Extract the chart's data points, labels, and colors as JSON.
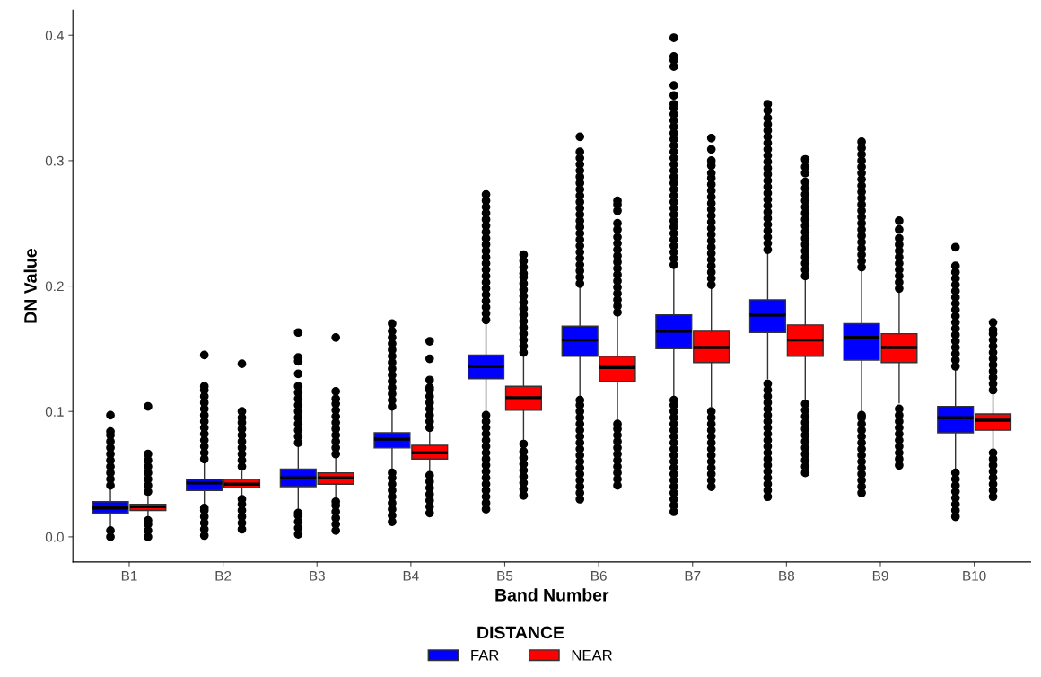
{
  "chart_data": {
    "type": "box",
    "xlabel": "Band Number",
    "ylabel": "DN Value",
    "legend_title": "DISTANCE",
    "legend": "bottom",
    "categories": [
      "B1",
      "B2",
      "B3",
      "B4",
      "B5",
      "B6",
      "B7",
      "B8",
      "B9",
      "B10"
    ],
    "ylim": [
      -0.02,
      0.42
    ],
    "yticks": [
      {
        "value": 0,
        "label": "0.0"
      },
      {
        "value": 0.1,
        "label": "0.1"
      },
      {
        "value": 0.2,
        "label": "0.2"
      },
      {
        "value": 0.3,
        "label": "0.3"
      },
      {
        "value": 0.4,
        "label": "0.4"
      }
    ],
    "series": [
      {
        "name": "FAR",
        "color": "#0000ff",
        "boxes": [
          {
            "low": 0.009,
            "q1": 0.019,
            "median": 0.023,
            "q3": 0.028,
            "high": 0.038,
            "outliers": [
              0.0,
              0.005,
              0.041,
              0.046,
              0.051,
              0.056,
              0.061,
              0.066,
              0.071,
              0.076,
              0.081,
              0.084,
              0.097
            ]
          },
          {
            "low": 0.025,
            "q1": 0.037,
            "median": 0.043,
            "q3": 0.046,
            "high": 0.059,
            "outliers": [
              0.001,
              0.006,
              0.011,
              0.016,
              0.021,
              0.023,
              0.062,
              0.067,
              0.072,
              0.077,
              0.082,
              0.087,
              0.092,
              0.097,
              0.102,
              0.107,
              0.112,
              0.117,
              0.12,
              0.145
            ]
          },
          {
            "low": 0.021,
            "q1": 0.04,
            "median": 0.047,
            "q3": 0.054,
            "high": 0.073,
            "outliers": [
              0.002,
              0.007,
              0.012,
              0.017,
              0.019,
              0.075,
              0.08,
              0.085,
              0.09,
              0.095,
              0.1,
              0.105,
              0.11,
              0.115,
              0.12,
              0.13,
              0.14,
              0.143,
              0.163
            ]
          },
          {
            "low": 0.053,
            "q1": 0.071,
            "median": 0.078,
            "q3": 0.083,
            "high": 0.101,
            "outliers": [
              0.012,
              0.017,
              0.022,
              0.027,
              0.032,
              0.037,
              0.042,
              0.047,
              0.051,
              0.104,
              0.109,
              0.114,
              0.119,
              0.124,
              0.129,
              0.134,
              0.139,
              0.144,
              0.149,
              0.154,
              0.159,
              0.164,
              0.17
            ]
          },
          {
            "low": 0.1,
            "q1": 0.126,
            "median": 0.136,
            "q3": 0.145,
            "high": 0.17,
            "outliers": [
              0.022,
              0.027,
              0.032,
              0.037,
              0.042,
              0.047,
              0.052,
              0.057,
              0.062,
              0.067,
              0.072,
              0.077,
              0.082,
              0.087,
              0.092,
              0.097,
              0.173,
              0.178,
              0.183,
              0.188,
              0.193,
              0.198,
              0.203,
              0.208,
              0.213,
              0.218,
              0.223,
              0.228,
              0.233,
              0.238,
              0.243,
              0.248,
              0.253,
              0.258,
              0.263,
              0.268,
              0.273
            ]
          },
          {
            "low": 0.112,
            "q1": 0.144,
            "median": 0.157,
            "q3": 0.168,
            "high": 0.199,
            "outliers": [
              0.03,
              0.035,
              0.04,
              0.045,
              0.05,
              0.055,
              0.06,
              0.065,
              0.07,
              0.075,
              0.08,
              0.085,
              0.09,
              0.095,
              0.1,
              0.105,
              0.109,
              0.202,
              0.207,
              0.212,
              0.217,
              0.222,
              0.227,
              0.232,
              0.237,
              0.242,
              0.247,
              0.252,
              0.257,
              0.262,
              0.267,
              0.272,
              0.277,
              0.282,
              0.287,
              0.292,
              0.297,
              0.302,
              0.307,
              0.319
            ]
          },
          {
            "low": 0.112,
            "q1": 0.15,
            "median": 0.164,
            "q3": 0.177,
            "high": 0.214,
            "outliers": [
              0.02,
              0.025,
              0.03,
              0.035,
              0.04,
              0.045,
              0.05,
              0.055,
              0.06,
              0.065,
              0.07,
              0.075,
              0.08,
              0.085,
              0.09,
              0.095,
              0.1,
              0.105,
              0.109,
              0.217,
              0.222,
              0.227,
              0.232,
              0.237,
              0.242,
              0.247,
              0.252,
              0.257,
              0.262,
              0.267,
              0.272,
              0.277,
              0.282,
              0.287,
              0.292,
              0.297,
              0.302,
              0.307,
              0.312,
              0.317,
              0.322,
              0.327,
              0.332,
              0.337,
              0.342,
              0.345,
              0.352,
              0.36,
              0.375,
              0.38,
              0.383,
              0.398
            ]
          },
          {
            "low": 0.126,
            "q1": 0.163,
            "median": 0.177,
            "q3": 0.189,
            "high": 0.226,
            "outliers": [
              0.032,
              0.037,
              0.042,
              0.047,
              0.052,
              0.057,
              0.062,
              0.067,
              0.072,
              0.077,
              0.082,
              0.087,
              0.092,
              0.097,
              0.102,
              0.107,
              0.112,
              0.117,
              0.122,
              0.229,
              0.234,
              0.239,
              0.244,
              0.249,
              0.254,
              0.259,
              0.264,
              0.269,
              0.274,
              0.279,
              0.284,
              0.289,
              0.294,
              0.299,
              0.304,
              0.309,
              0.314,
              0.319,
              0.324,
              0.329,
              0.334,
              0.34,
              0.345
            ]
          },
          {
            "low": 0.1,
            "q1": 0.141,
            "median": 0.159,
            "q3": 0.17,
            "high": 0.212,
            "outliers": [
              0.035,
              0.04,
              0.045,
              0.05,
              0.055,
              0.06,
              0.065,
              0.07,
              0.075,
              0.08,
              0.085,
              0.09,
              0.095,
              0.097,
              0.215,
              0.22,
              0.225,
              0.23,
              0.235,
              0.24,
              0.245,
              0.25,
              0.255,
              0.26,
              0.265,
              0.27,
              0.275,
              0.28,
              0.285,
              0.29,
              0.295,
              0.3,
              0.305,
              0.31,
              0.315
            ]
          },
          {
            "low": 0.054,
            "q1": 0.083,
            "median": 0.095,
            "q3": 0.104,
            "high": 0.134,
            "outliers": [
              0.016,
              0.021,
              0.026,
              0.031,
              0.036,
              0.041,
              0.046,
              0.051,
              0.136,
              0.141,
              0.146,
              0.151,
              0.156,
              0.161,
              0.166,
              0.171,
              0.176,
              0.181,
              0.186,
              0.191,
              0.196,
              0.201,
              0.206,
              0.211,
              0.216,
              0.231
            ]
          }
        ]
      },
      {
        "name": "NEAR",
        "color": "#ff0000",
        "boxes": [
          {
            "low": 0.015,
            "q1": 0.021,
            "median": 0.024,
            "q3": 0.026,
            "high": 0.032,
            "outliers": [
              0.0,
              0.005,
              0.01,
              0.013,
              0.036,
              0.041,
              0.046,
              0.051,
              0.056,
              0.061,
              0.066,
              0.104
            ]
          },
          {
            "low": 0.032,
            "q1": 0.039,
            "median": 0.042,
            "q3": 0.046,
            "high": 0.052,
            "outliers": [
              0.006,
              0.011,
              0.016,
              0.021,
              0.026,
              0.03,
              0.056,
              0.061,
              0.066,
              0.071,
              0.076,
              0.081,
              0.086,
              0.091,
              0.095,
              0.1,
              0.138
            ]
          },
          {
            "low": 0.03,
            "q1": 0.042,
            "median": 0.047,
            "q3": 0.051,
            "high": 0.063,
            "outliers": [
              0.005,
              0.01,
              0.015,
              0.02,
              0.025,
              0.028,
              0.066,
              0.071,
              0.076,
              0.081,
              0.086,
              0.091,
              0.096,
              0.101,
              0.106,
              0.11,
              0.116,
              0.159
            ]
          },
          {
            "low": 0.051,
            "q1": 0.062,
            "median": 0.067,
            "q3": 0.073,
            "high": 0.085,
            "outliers": [
              0.019,
              0.024,
              0.029,
              0.034,
              0.039,
              0.044,
              0.049,
              0.087,
              0.092,
              0.097,
              0.102,
              0.107,
              0.112,
              0.117,
              0.119,
              0.125,
              0.142,
              0.156
            ]
          },
          {
            "low": 0.076,
            "q1": 0.101,
            "median": 0.111,
            "q3": 0.12,
            "high": 0.144,
            "outliers": [
              0.033,
              0.038,
              0.043,
              0.048,
              0.053,
              0.058,
              0.063,
              0.068,
              0.074,
              0.147,
              0.152,
              0.157,
              0.162,
              0.167,
              0.172,
              0.177,
              0.182,
              0.187,
              0.192,
              0.197,
              0.202,
              0.207,
              0.21,
              0.215,
              0.22,
              0.225
            ]
          },
          {
            "low": 0.093,
            "q1": 0.124,
            "median": 0.135,
            "q3": 0.144,
            "high": 0.176,
            "outliers": [
              0.041,
              0.046,
              0.051,
              0.056,
              0.061,
              0.066,
              0.071,
              0.076,
              0.081,
              0.086,
              0.09,
              0.179,
              0.184,
              0.189,
              0.194,
              0.199,
              0.204,
              0.209,
              0.214,
              0.219,
              0.224,
              0.229,
              0.234,
              0.239,
              0.245,
              0.25,
              0.26,
              0.265,
              0.268
            ]
          },
          {
            "low": 0.104,
            "q1": 0.139,
            "median": 0.151,
            "q3": 0.164,
            "high": 0.198,
            "outliers": [
              0.04,
              0.045,
              0.05,
              0.055,
              0.06,
              0.065,
              0.07,
              0.075,
              0.08,
              0.085,
              0.09,
              0.095,
              0.1,
              0.201,
              0.206,
              0.211,
              0.216,
              0.221,
              0.226,
              0.231,
              0.236,
              0.241,
              0.246,
              0.251,
              0.256,
              0.261,
              0.266,
              0.271,
              0.276,
              0.281,
              0.286,
              0.29,
              0.296,
              0.3,
              0.309,
              0.318
            ]
          },
          {
            "low": 0.11,
            "q1": 0.144,
            "median": 0.157,
            "q3": 0.169,
            "high": 0.205,
            "outliers": [
              0.051,
              0.056,
              0.061,
              0.066,
              0.071,
              0.076,
              0.081,
              0.086,
              0.091,
              0.096,
              0.101,
              0.106,
              0.208,
              0.213,
              0.218,
              0.223,
              0.228,
              0.233,
              0.238,
              0.243,
              0.248,
              0.253,
              0.258,
              0.263,
              0.268,
              0.273,
              0.278,
              0.283,
              0.29,
              0.295,
              0.301
            ]
          },
          {
            "low": 0.107,
            "q1": 0.139,
            "median": 0.151,
            "q3": 0.162,
            "high": 0.195,
            "outliers": [
              0.057,
              0.062,
              0.067,
              0.072,
              0.077,
              0.082,
              0.087,
              0.092,
              0.097,
              0.102,
              0.198,
              0.203,
              0.208,
              0.213,
              0.218,
              0.223,
              0.228,
              0.233,
              0.238,
              0.245,
              0.252
            ]
          },
          {
            "low": 0.069,
            "q1": 0.085,
            "median": 0.093,
            "q3": 0.098,
            "high": 0.114,
            "outliers": [
              0.032,
              0.037,
              0.042,
              0.047,
              0.052,
              0.057,
              0.062,
              0.067,
              0.117,
              0.122,
              0.127,
              0.132,
              0.137,
              0.142,
              0.147,
              0.152,
              0.157,
              0.162,
              0.165,
              0.171
            ]
          }
        ]
      }
    ]
  }
}
